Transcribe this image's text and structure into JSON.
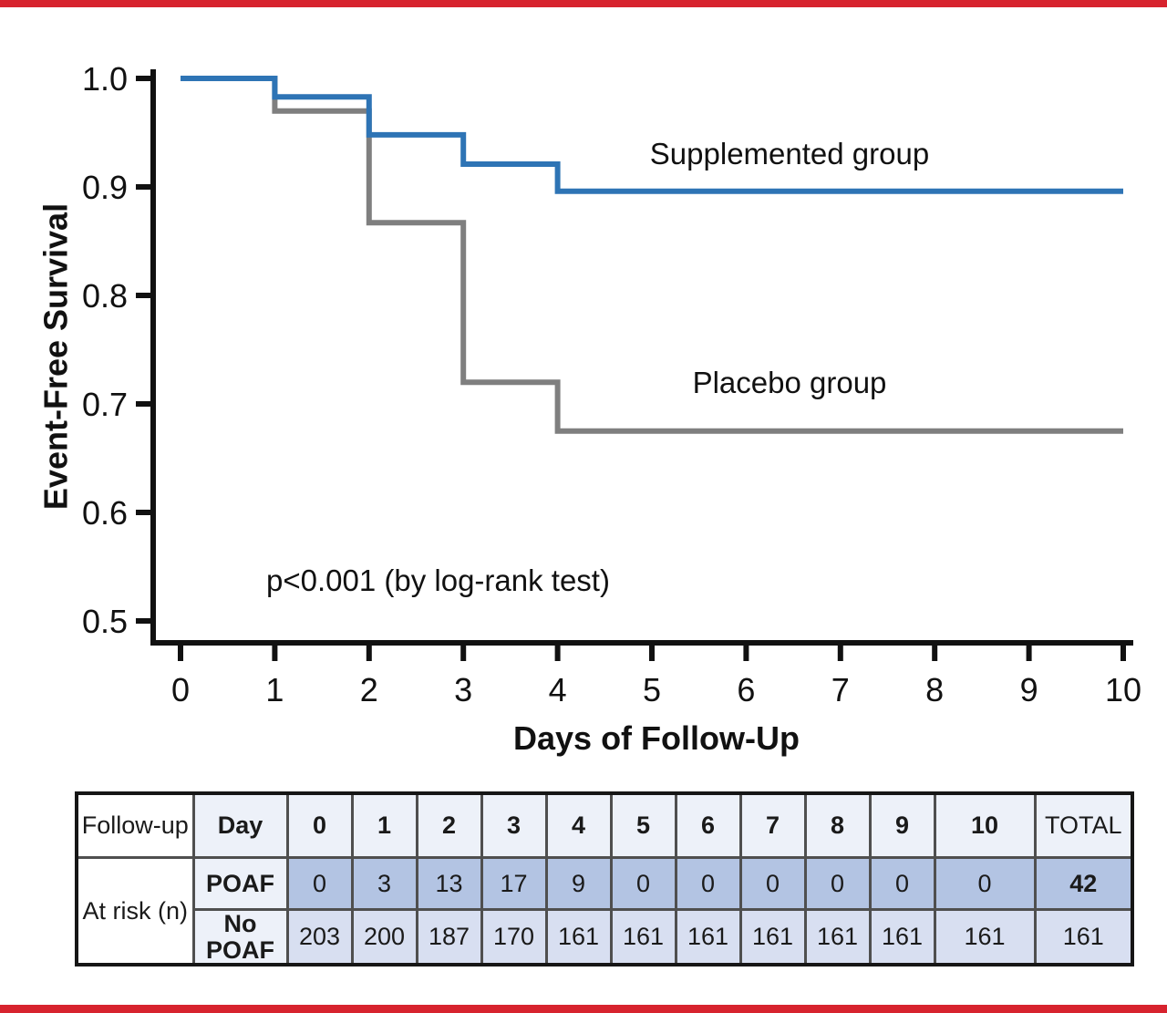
{
  "page": {
    "background": "#ffffff",
    "top_bar_color": "#d7232e",
    "bottom_bar_color": "#d7232e"
  },
  "colors": {
    "supplemented": "#2e74b5",
    "placebo": "#7f7f7f",
    "accent_red": "#d7232e",
    "text": "#111111"
  },
  "chart_data": {
    "type": "line",
    "subtype": "kaplan-meier-step",
    "title": "",
    "xlabel": "Days of Follow-Up",
    "ylabel": "Event-Free Survival",
    "annotation": "p<0.001 (by log-rank test)",
    "legend_position": "inline-labels",
    "grid": false,
    "x_axis": {
      "range": [
        0,
        10
      ],
      "ticks": [
        0,
        1,
        2,
        3,
        4,
        5,
        6,
        7,
        8,
        9,
        10
      ]
    },
    "y_axis": {
      "range_shown": [
        0.5,
        1.0
      ],
      "ticks": [
        1.0,
        0.9,
        0.8,
        0.7,
        0.6,
        0.5
      ],
      "tick_labels": [
        "1.0",
        "0.9",
        "0.8",
        "0.7",
        "0.6",
        "0.5"
      ]
    },
    "series": [
      {
        "name": "Supplemented group",
        "color": "#2e74b5",
        "start": [
          0,
          1.0
        ],
        "drops": [
          [
            1,
            0.983
          ],
          [
            2,
            0.948
          ],
          [
            3,
            0.921
          ],
          [
            4,
            0.896
          ]
        ],
        "end_day": 10,
        "final_value": 0.896
      },
      {
        "name": "Placebo group",
        "color": "#7f7f7f",
        "start": [
          0,
          1.0
        ],
        "drops": [
          [
            1,
            0.97
          ],
          [
            2,
            0.867
          ],
          [
            3,
            0.72
          ],
          [
            4,
            0.675
          ]
        ],
        "end_day": 10,
        "final_value": 0.675
      }
    ]
  },
  "risk_table": {
    "corner_label": "Follow-up",
    "row_group_label": "At risk (n)",
    "header_label": "Day",
    "columns": [
      "0",
      "1",
      "2",
      "3",
      "4",
      "5",
      "6",
      "7",
      "8",
      "9",
      "10",
      "TOTAL"
    ],
    "rows": [
      {
        "label": "POAF",
        "values": [
          "0",
          "3",
          "13",
          "17",
          "9",
          "0",
          "0",
          "0",
          "0",
          "0",
          "0",
          "42"
        ]
      },
      {
        "label": "No POAF",
        "values": [
          "203",
          "200",
          "187",
          "170",
          "161",
          "161",
          "161",
          "161",
          "161",
          "161",
          "161",
          "161"
        ]
      }
    ],
    "colors": {
      "header_bg": "#edf1f9",
      "poaf_bg": "#b3c4e3",
      "no_poaf_bg": "#d8dff1",
      "white_bg": "#ffffff",
      "grid": "#4f4f4f",
      "outer_border": "#161616"
    }
  }
}
